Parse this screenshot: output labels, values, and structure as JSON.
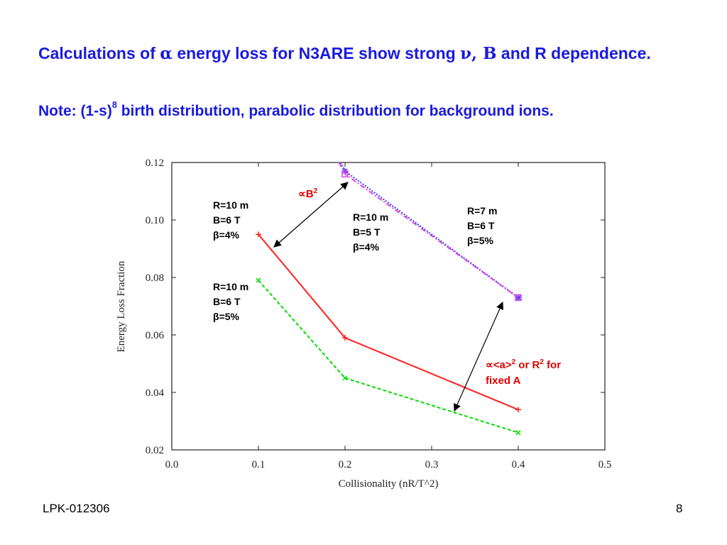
{
  "slide": {
    "title_parts": [
      "Calculations of ",
      "α",
      " energy loss for N3ARE show strong ",
      "ν, Β",
      " and R dependence."
    ],
    "note_parts": [
      "Note: (1-s)",
      "8",
      " birth distribution, parabolic distribution for background ions."
    ],
    "footer_left": "LPK-012306",
    "page_number": "8"
  },
  "chart_data": {
    "type": "line",
    "xlabel": "Collisionality (nR/T^2)",
    "ylabel": "Energy Loss Fraction",
    "xlim": [
      0.0,
      0.5
    ],
    "ylim": [
      0.02,
      0.12
    ],
    "x_ticks": [
      "0.0",
      "0.1",
      "0.2",
      "0.3",
      "0.4",
      "0.5"
    ],
    "y_ticks": [
      "0.02",
      "0.04",
      "0.06",
      "0.08",
      "0.10",
      "0.12"
    ],
    "grid": false,
    "series": [
      {
        "color": "#ff2020",
        "dash": "solid",
        "marker": "+",
        "points": [
          [
            0.1,
            0.095
          ],
          [
            0.2,
            0.059
          ],
          [
            0.4,
            0.034
          ]
        ]
      },
      {
        "color": "#00dd00",
        "dash": "dashed",
        "marker": "x",
        "points": [
          [
            0.1,
            0.079
          ],
          [
            0.2,
            0.045
          ],
          [
            0.4,
            0.026
          ]
        ]
      },
      {
        "color": "#3a3aff",
        "dash": "dotted",
        "marker": "*",
        "points": [
          [
            0.195,
            0.12
          ],
          [
            0.2,
            0.117
          ],
          [
            0.4,
            0.073
          ]
        ]
      },
      {
        "color": "#e040e0",
        "dash": "dash-dot",
        "marker": "square",
        "points": [
          [
            0.193,
            0.12
          ],
          [
            0.2,
            0.116
          ],
          [
            0.4,
            0.073
          ]
        ]
      }
    ],
    "annotations": [
      {
        "lines": [
          "R=10 m",
          "B=6 T",
          "β=4%"
        ]
      },
      {
        "lines": [
          "R=10 m",
          "B=6 T",
          "β=5%"
        ]
      },
      {
        "lines": [
          "R=10 m",
          "B=5 T",
          "β=4%"
        ]
      },
      {
        "lines": [
          "R=7 m",
          "B=6 T",
          "β=5%"
        ]
      }
    ],
    "arrow_labels": {
      "b_scaling": {
        "prefix": "∝B",
        "sup": "2"
      },
      "a_scaling": {
        "line1_prefix": "∝<a>",
        "sup1": "2",
        "mid": " or R",
        "sup2": "2",
        "suffix": " for",
        "line2": "fixed A"
      }
    }
  }
}
